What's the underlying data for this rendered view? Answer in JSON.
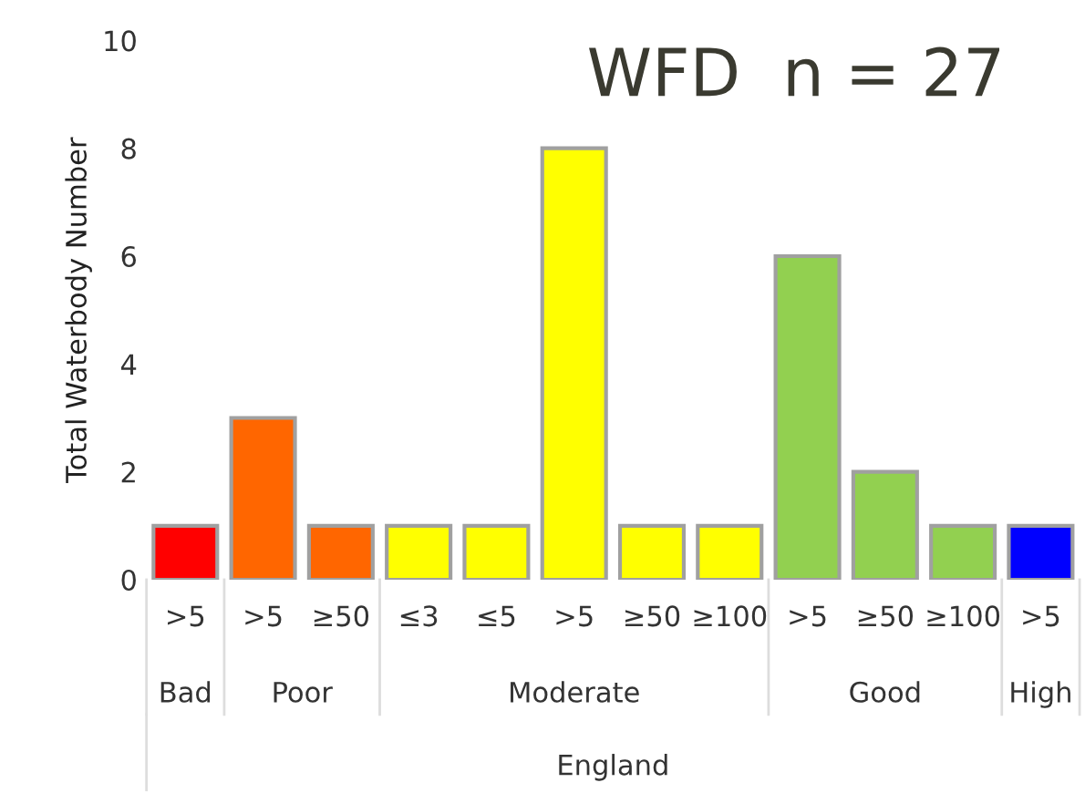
{
  "chart_data": {
    "type": "bar",
    "title": "WFD  n = 27",
    "ylabel": "Total Waterbody Number",
    "categories": [
      ">5",
      ">5",
      "≥50",
      "≤3",
      "≤5",
      ">5",
      "≥50",
      "≥100",
      ">5",
      "≥50",
      "≥100",
      ">5"
    ],
    "values": [
      1,
      3,
      1,
      1,
      1,
      8,
      1,
      1,
      6,
      2,
      1,
      1
    ],
    "colors": [
      "#ff0000",
      "#ff6600",
      "#ff6600",
      "#ffff00",
      "#ffff00",
      "#ffff00",
      "#ffff00",
      "#ffff00",
      "#92d050",
      "#92d050",
      "#92d050",
      "#0000ff"
    ],
    "annotations": [
      "Bad",
      "Poor",
      "Moderate",
      "Good",
      "High",
      "England"
    ],
    "ylim": [
      0,
      10
    ],
    "yticks": [
      0,
      2,
      4,
      6,
      8,
      10
    ],
    "grid": false
  }
}
